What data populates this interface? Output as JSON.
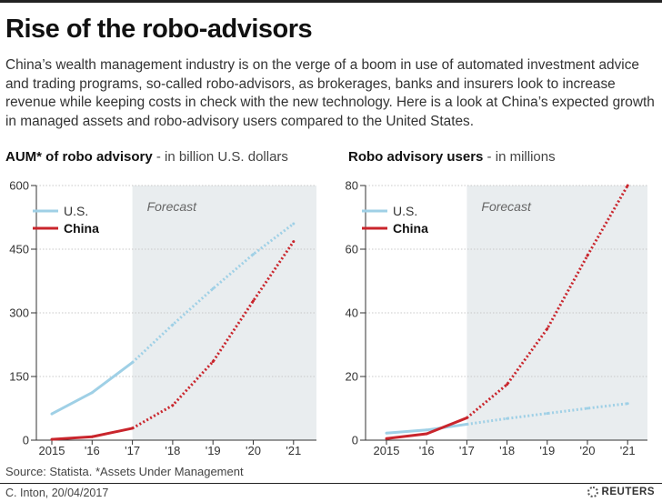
{
  "header": {
    "title": "Rise of the robo-advisors",
    "intro": "China’s wealth management industry is on the verge of a boom in use of automated investment advice and trading programs, so-called robo-advisors, as brokerages, banks and insurers look to increase revenue while keeping costs in check with the new technology. Here is a look at China’s expected growth in managed assets and robo-advisory users compared to the United States."
  },
  "colors": {
    "us": "#9fd0e6",
    "china": "#c9252c",
    "forecast_bg": "#e9edef",
    "grid": "#c8c8c8"
  },
  "chart_data": [
    {
      "type": "line",
      "title": "AUM* of robo advisory",
      "subtitle": "in billion U.S. dollars",
      "x": [
        "2015",
        "'16",
        "'17",
        "'18",
        "'19",
        "'20",
        "'21"
      ],
      "ylim": [
        0,
        600
      ],
      "yticks": [
        "0",
        "150",
        "300",
        "450",
        "600"
      ],
      "forecast_label": "Forecast",
      "forecast_start": "'17",
      "legend": [
        "U.S.",
        "China"
      ],
      "legend_position": "top-left",
      "series": [
        {
          "name": "U.S.",
          "values": [
            62,
            112,
            183,
            272,
            357,
            438,
            510
          ]
        },
        {
          "name": "China",
          "values": [
            2,
            8,
            28,
            82,
            185,
            328,
            468
          ]
        }
      ]
    },
    {
      "type": "line",
      "title": "Robo advisory users",
      "subtitle": "in millions",
      "x": [
        "2015",
        "'16",
        "'17",
        "'18",
        "'19",
        "'20",
        "'21"
      ],
      "ylim": [
        0,
        80
      ],
      "yticks": [
        "0",
        "20",
        "40",
        "60",
        "80"
      ],
      "forecast_label": "Forecast",
      "forecast_start": "'17",
      "legend": [
        "U.S.",
        "China"
      ],
      "legend_position": "top-left",
      "series": [
        {
          "name": "U.S.",
          "values": [
            2.2,
            3.2,
            5.0,
            6.8,
            8.4,
            10.0,
            11.5
          ]
        },
        {
          "name": "China",
          "values": [
            0.5,
            2.0,
            7.0,
            17.5,
            35.0,
            58.0,
            80.0
          ]
        }
      ]
    }
  ],
  "footer": {
    "source": "Source: Statista. *Assets Under Management",
    "credit": "C. Inton, 20/04/2017",
    "logo": "REUTERS"
  }
}
